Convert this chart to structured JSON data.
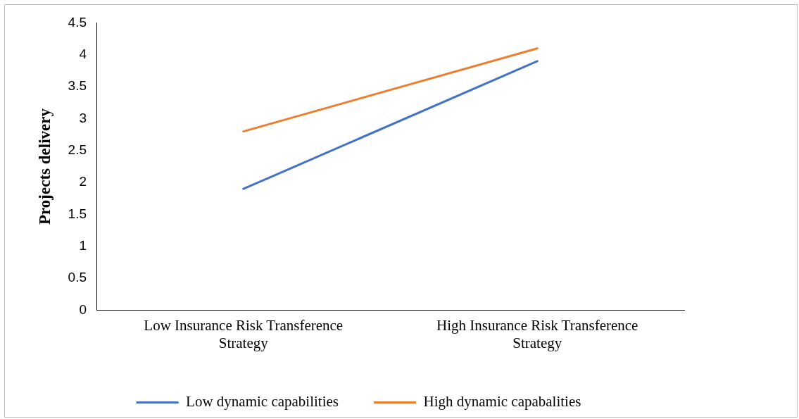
{
  "chart_data": {
    "type": "line",
    "ylabel": "Projects delivery",
    "categories": [
      "Low Insurance Risk Transference Strategy",
      "High Insurance Risk Transference Strategy"
    ],
    "series": [
      {
        "name": "Low dynamic capabilities",
        "color": "#4472c4",
        "values": [
          1.9,
          3.9
        ]
      },
      {
        "name": "High dynamic capabalities",
        "color": "#ed7d31",
        "values": [
          2.8,
          4.1
        ]
      }
    ],
    "ylim": [
      0,
      4.5
    ],
    "yticks": [
      0,
      0.5,
      1,
      1.5,
      2,
      2.5,
      3,
      3.5,
      4,
      4.5
    ],
    "grid": false,
    "legend": "bottom",
    "marker": "none",
    "line_style": "solid"
  }
}
